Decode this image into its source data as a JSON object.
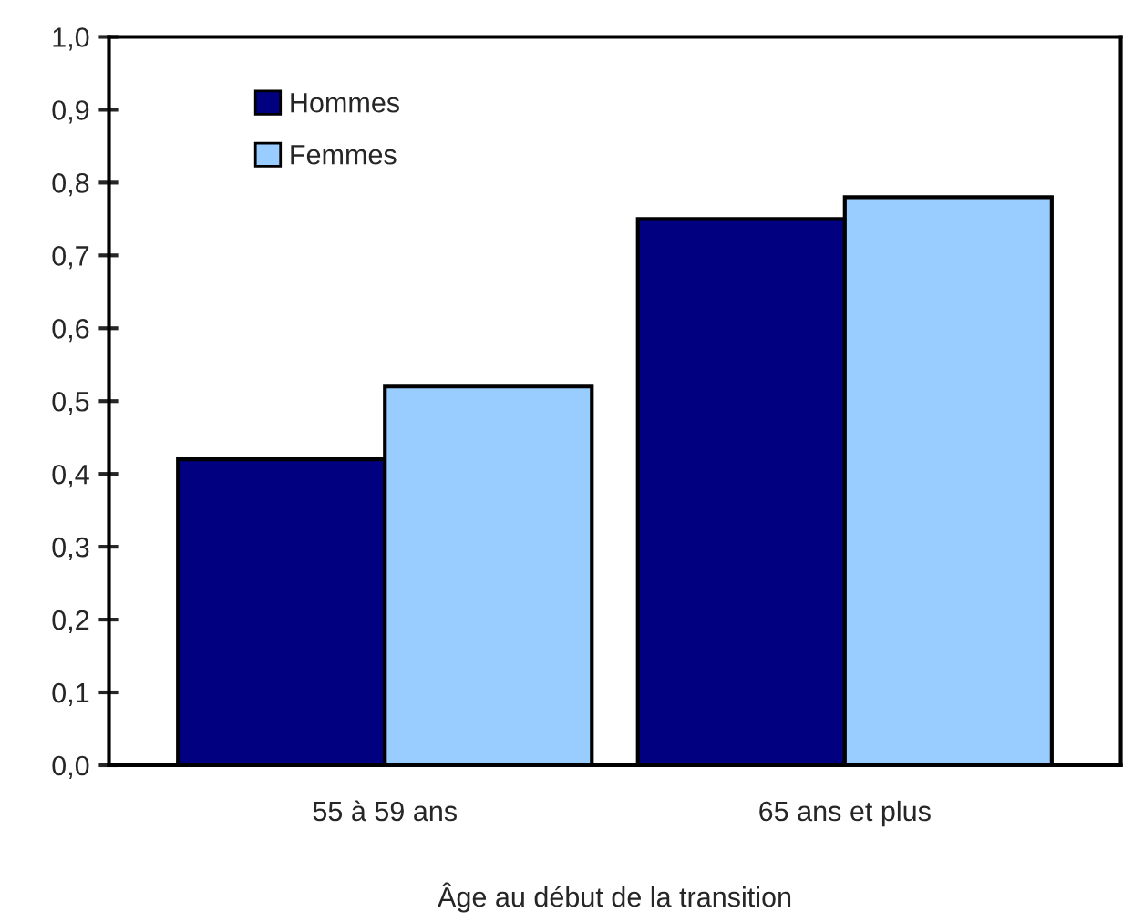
{
  "chart_data": {
    "type": "bar",
    "xlabel": "Âge au début de la transition",
    "categories": [
      "55 à 59 ans",
      "65 ans et plus"
    ],
    "series": [
      {
        "name": "Hommes",
        "color": "#000080",
        "values": [
          0.42,
          0.75
        ]
      },
      {
        "name": "Femmes",
        "color": "#99ccff",
        "values": [
          0.52,
          0.78
        ]
      }
    ],
    "ylim": [
      0,
      1.0
    ],
    "yticks": [
      {
        "value": 0,
        "label": "0,0"
      },
      {
        "value": 0.1,
        "label": "0,1"
      },
      {
        "value": 0.2,
        "label": "0,2"
      },
      {
        "value": 0.3,
        "label": "0,3"
      },
      {
        "value": 0.4,
        "label": "0,4"
      },
      {
        "value": 0.5,
        "label": "0,5"
      },
      {
        "value": 0.6,
        "label": "0,6"
      },
      {
        "value": 0.7,
        "label": "0,7"
      },
      {
        "value": 0.8,
        "label": "0,8"
      },
      {
        "value": 0.9,
        "label": "0,9"
      },
      {
        "value": 1.0,
        "label": "1,0"
      }
    ],
    "grid": false,
    "legend": "top left"
  }
}
